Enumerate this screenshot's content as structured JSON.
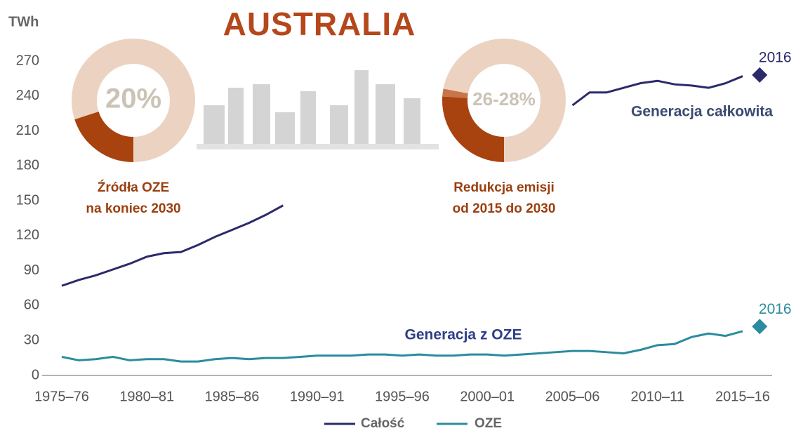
{
  "chart_data": {
    "type": "line",
    "title": "AUSTRALIA",
    "y_label": "TWh",
    "categories": [
      "1975–76",
      null,
      null,
      null,
      null,
      "1980–81",
      null,
      null,
      null,
      null,
      "1985–86",
      null,
      null,
      null,
      null,
      "1990–91",
      null,
      null,
      null,
      null,
      "1995–96",
      null,
      null,
      null,
      null,
      "2000–01",
      null,
      null,
      null,
      null,
      "2005–06",
      null,
      null,
      null,
      null,
      "2010–11",
      null,
      null,
      null,
      null,
      "2015–16",
      null
    ],
    "series": [
      {
        "name": "Całość",
        "color": "#2b2a6b",
        "values": [
          77,
          82,
          86,
          91,
          96,
          102,
          105,
          106,
          112,
          119,
          125,
          131,
          138,
          146,
          null,
          null,
          null,
          null,
          null,
          null,
          null,
          null,
          null,
          null,
          null,
          null,
          null,
          null,
          null,
          null,
          232,
          243,
          243,
          247,
          251,
          253,
          250,
          249,
          247,
          251,
          257,
          null
        ]
      },
      {
        "name": "OZE",
        "color": "#2a8c9e",
        "values": [
          16,
          13,
          14,
          16,
          13,
          14,
          14,
          12,
          12,
          14,
          15,
          14,
          15,
          15,
          16,
          17,
          17,
          17,
          18,
          18,
          17,
          18,
          17,
          17,
          18,
          18,
          17,
          18,
          19,
          20,
          21,
          21,
          20,
          19,
          22,
          26,
          27,
          33,
          36,
          34,
          38,
          null
        ]
      }
    ],
    "end_markers": [
      {
        "label": "2016",
        "value": 258
      },
      {
        "label": "2016",
        "value": 42
      }
    ],
    "annotations": [
      "Generacja całkowita",
      "Generacja z OZE"
    ],
    "ylim": [
      0,
      270
    ],
    "yticks": [
      0,
      30,
      60,
      90,
      120,
      150,
      180,
      210,
      240,
      270
    ],
    "grid": false,
    "legend": "bottom",
    "donuts": [
      {
        "label": "20%",
        "values": [
          20
        ],
        "caption": [
          "Źródła OZE",
          "na koniec 2030"
        ]
      },
      {
        "label": "26-28%",
        "values": [
          26,
          28
        ],
        "caption": [
          "Redukcja emisji",
          "od 2015 do 2030"
        ]
      }
    ]
  }
}
